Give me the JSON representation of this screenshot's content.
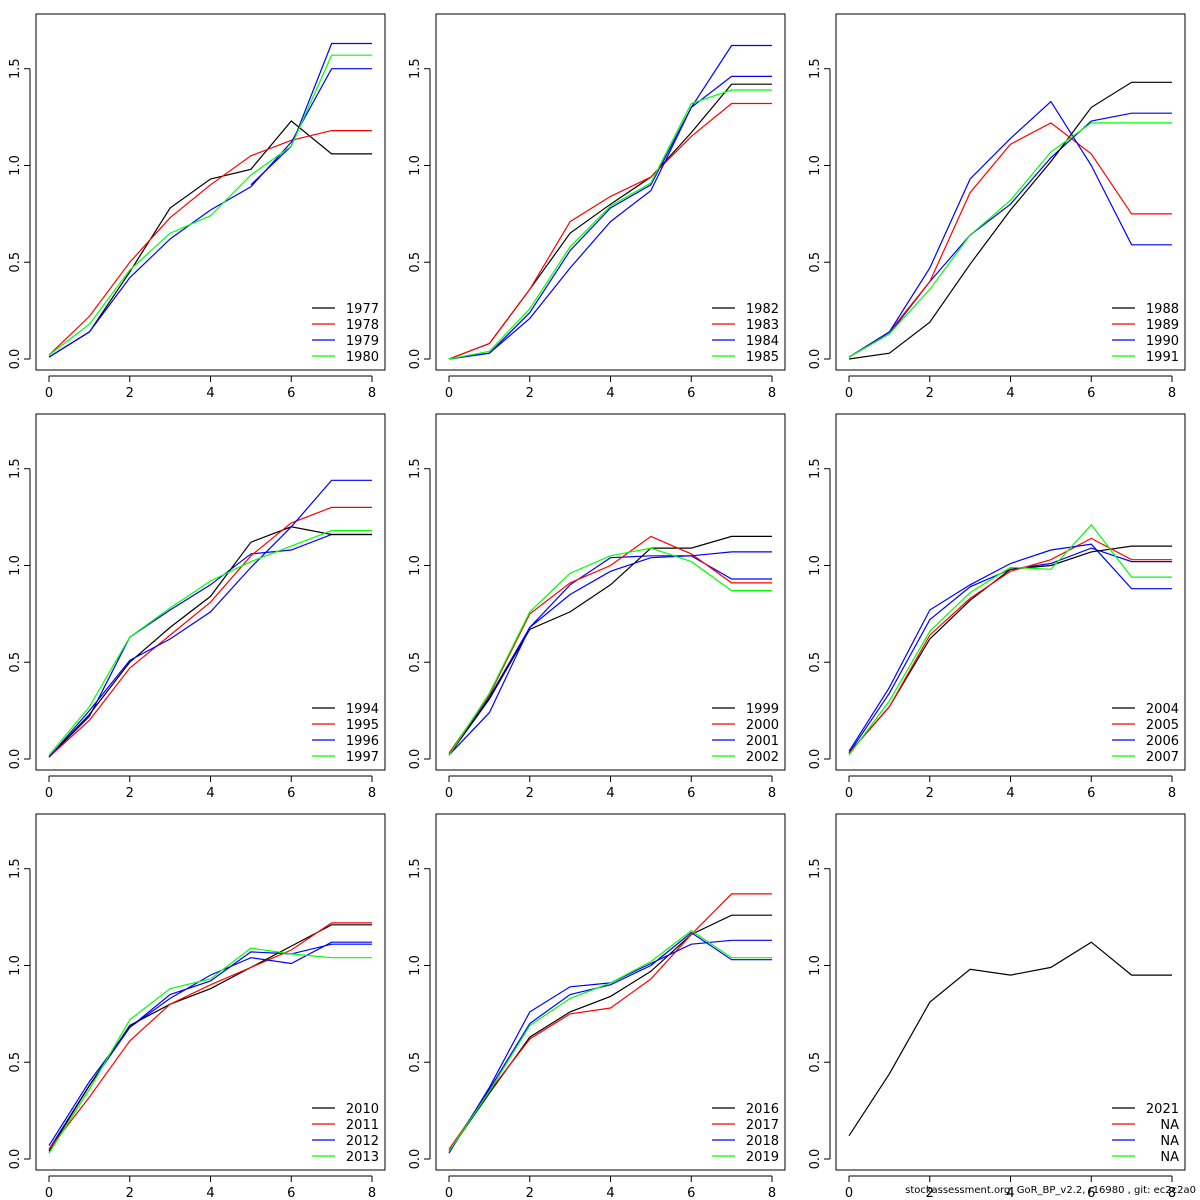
{
  "footer": "stockassessment.org, GoR_BP_v2.2, r16980 , git: ec2c2a0",
  "chart_data": {
    "type": "line",
    "layout": "3x3 panels",
    "xlim": [
      0,
      8
    ],
    "ylim": [
      0,
      1.7
    ],
    "x_ticks": [
      0,
      2,
      4,
      6,
      8
    ],
    "y_ticks": [
      "0.0",
      "0.5",
      "1.0",
      "1.5"
    ],
    "legend_position": "bottom-right",
    "series_colors": [
      "#000000",
      "#ff0000",
      "#0000ff",
      "#00ff00"
    ],
    "x": [
      0,
      1,
      2,
      3,
      4,
      5,
      6,
      7,
      8
    ],
    "panels": [
      {
        "series": [
          {
            "name": "1977",
            "values": [
              0.01,
              0.14,
              0.45,
              0.78,
              0.93,
              0.98,
              1.23,
              1.06,
              1.06
            ]
          },
          {
            "name": "1978",
            "values": [
              0.02,
              0.22,
              0.5,
              0.73,
              0.9,
              1.05,
              1.13,
              1.18,
              1.18
            ]
          },
          {
            "name": "1979",
            "values": [
              0.01,
              0.14,
              0.42,
              0.62,
              0.77,
              0.89,
              1.12,
              1.5,
              1.5
            ]
          },
          {
            "name": "1980",
            "values": [
              0.02,
              0.18,
              0.46,
              0.65,
              0.74,
              0.95,
              1.1,
              1.57,
              1.57
            ]
          }
        ],
        "extra_series": [
          {
            "color": "#0000ff",
            "values": [
              null,
              null,
              null,
              null,
              null,
              0.9,
              1.1,
              1.63,
              1.63
            ]
          }
        ]
      },
      {
        "series": [
          {
            "name": "1982",
            "values": [
              0.0,
              0.08,
              0.36,
              0.65,
              0.8,
              0.94,
              1.17,
              1.42,
              1.42
            ]
          },
          {
            "name": "1983",
            "values": [
              0.0,
              0.08,
              0.36,
              0.71,
              0.84,
              0.94,
              1.15,
              1.32,
              1.32
            ]
          },
          {
            "name": "1984",
            "values": [
              0.0,
              0.03,
              0.21,
              0.47,
              0.71,
              0.87,
              1.3,
              1.46,
              1.46
            ]
          },
          {
            "name": "1985",
            "values": [
              0.0,
              0.04,
              0.26,
              0.58,
              0.79,
              0.91,
              1.32,
              1.39,
              1.39
            ]
          }
        ],
        "extra_series": [
          {
            "color": "#0000ff",
            "values": [
              0.0,
              0.03,
              0.24,
              0.56,
              0.78,
              0.9,
              1.3,
              1.62,
              1.62
            ]
          }
        ]
      },
      {
        "series": [
          {
            "name": "1988",
            "values": [
              0.0,
              0.03,
              0.19,
              0.49,
              0.77,
              1.02,
              1.3,
              1.43,
              1.43
            ]
          },
          {
            "name": "1989",
            "values": [
              0.01,
              0.14,
              0.4,
              0.86,
              1.11,
              1.22,
              1.06,
              0.75,
              0.75
            ]
          },
          {
            "name": "1990",
            "values": [
              0.01,
              0.14,
              0.47,
              0.93,
              1.14,
              1.33,
              1.0,
              0.59,
              0.59
            ]
          },
          {
            "name": "1991",
            "values": [
              0.01,
              0.13,
              0.36,
              0.64,
              0.82,
              1.07,
              1.22,
              1.22,
              1.22
            ]
          }
        ],
        "extra_series": [
          {
            "color": "#0000ff",
            "values": [
              0.01,
              0.13,
              0.4,
              0.64,
              0.8,
              1.04,
              1.23,
              1.27,
              1.27
            ]
          }
        ]
      },
      {
        "series": [
          {
            "name": "1994",
            "values": [
              0.01,
              0.23,
              0.5,
              0.68,
              0.84,
              1.12,
              1.2,
              1.16,
              1.16
            ]
          },
          {
            "name": "1995",
            "values": [
              0.01,
              0.2,
              0.47,
              0.64,
              0.81,
              1.05,
              1.22,
              1.3,
              1.3
            ]
          },
          {
            "name": "1996",
            "values": [
              0.01,
              0.25,
              0.51,
              0.62,
              0.76,
              0.99,
              1.2,
              1.44,
              1.44
            ]
          },
          {
            "name": "1997",
            "values": [
              0.02,
              0.27,
              0.63,
              0.78,
              0.92,
              1.02,
              1.1,
              1.18,
              1.18
            ]
          }
        ],
        "extra_series": [
          {
            "color": "#0000ff",
            "values": [
              0.01,
              0.22,
              0.63,
              0.77,
              0.9,
              1.06,
              1.08,
              1.16,
              1.16
            ]
          }
        ]
      },
      {
        "series": [
          {
            "name": "1999",
            "values": [
              0.02,
              0.31,
              0.67,
              0.76,
              0.9,
              1.09,
              1.09,
              1.15,
              1.15
            ]
          },
          {
            "name": "2000",
            "values": [
              0.03,
              0.33,
              0.75,
              0.91,
              1.0,
              1.15,
              1.06,
              0.91,
              0.91
            ]
          },
          {
            "name": "2001",
            "values": [
              0.02,
              0.24,
              0.68,
              0.85,
              0.97,
              1.04,
              1.05,
              1.07,
              1.07
            ]
          },
          {
            "name": "2002",
            "values": [
              0.02,
              0.34,
              0.76,
              0.96,
              1.05,
              1.09,
              1.02,
              0.87,
              0.87
            ]
          }
        ],
        "extra_series": [
          {
            "color": "#0000ff",
            "values": [
              0.02,
              0.32,
              0.68,
              0.9,
              1.04,
              1.05,
              1.05,
              0.93,
              0.93
            ]
          }
        ]
      },
      {
        "series": [
          {
            "name": "2004",
            "values": [
              0.03,
              0.27,
              0.62,
              0.82,
              0.98,
              1.0,
              1.07,
              1.1,
              1.1
            ]
          },
          {
            "name": "2005",
            "values": [
              0.03,
              0.27,
              0.64,
              0.83,
              0.97,
              1.03,
              1.14,
              1.03,
              1.03
            ]
          },
          {
            "name": "2006",
            "values": [
              0.04,
              0.37,
              0.77,
              0.9,
              1.01,
              1.08,
              1.11,
              0.88,
              0.88
            ]
          },
          {
            "name": "2007",
            "values": [
              0.02,
              0.3,
              0.66,
              0.86,
              0.99,
              0.98,
              1.21,
              0.94,
              0.94
            ]
          }
        ],
        "extra_series": [
          {
            "color": "#0000ff",
            "values": [
              0.03,
              0.34,
              0.72,
              0.89,
              0.98,
              1.01,
              1.09,
              1.02,
              1.02
            ]
          }
        ]
      },
      {
        "series": [
          {
            "name": "2010",
            "values": [
              0.04,
              0.38,
              0.69,
              0.8,
              0.88,
              0.99,
              1.1,
              1.21,
              1.21
            ]
          },
          {
            "name": "2011",
            "values": [
              0.05,
              0.32,
              0.61,
              0.8,
              0.9,
              0.99,
              1.08,
              1.22,
              1.22
            ]
          },
          {
            "name": "2012",
            "values": [
              0.07,
              0.4,
              0.68,
              0.83,
              0.95,
              1.04,
              1.01,
              1.12,
              1.12
            ]
          },
          {
            "name": "2013",
            "values": [
              0.03,
              0.36,
              0.72,
              0.88,
              0.93,
              1.09,
              1.06,
              1.04,
              1.04
            ]
          }
        ],
        "extra_series": [
          {
            "color": "#0000ff",
            "values": [
              0.05,
              0.38,
              0.68,
              0.85,
              0.92,
              1.07,
              1.06,
              1.11,
              1.11
            ]
          }
        ]
      },
      {
        "series": [
          {
            "name": "2016",
            "values": [
              0.04,
              0.34,
              0.63,
              0.76,
              0.84,
              0.97,
              1.16,
              1.26,
              1.26
            ]
          },
          {
            "name": "2017",
            "values": [
              0.05,
              0.35,
              0.62,
              0.75,
              0.78,
              0.93,
              1.16,
              1.37,
              1.37
            ]
          },
          {
            "name": "2018",
            "values": [
              0.03,
              0.37,
              0.76,
              0.89,
              0.91,
              1.01,
              1.11,
              1.13,
              1.13
            ]
          },
          {
            "name": "2019",
            "values": [
              0.04,
              0.35,
              0.69,
              0.83,
              0.91,
              1.02,
              1.18,
              1.04,
              1.04
            ]
          }
        ],
        "extra_series": [
          {
            "color": "#0000ff",
            "values": [
              0.04,
              0.36,
              0.7,
              0.85,
              0.9,
              1.0,
              1.17,
              1.03,
              1.03
            ]
          }
        ]
      },
      {
        "series": [
          {
            "name": "2021",
            "values": [
              0.12,
              0.44,
              0.81,
              0.98,
              0.95,
              0.99,
              1.12,
              0.95,
              0.95
            ]
          },
          {
            "name": "NA",
            "values": []
          },
          {
            "name": "NA",
            "values": []
          },
          {
            "name": "NA",
            "values": []
          }
        ],
        "extra_series": []
      }
    ]
  }
}
